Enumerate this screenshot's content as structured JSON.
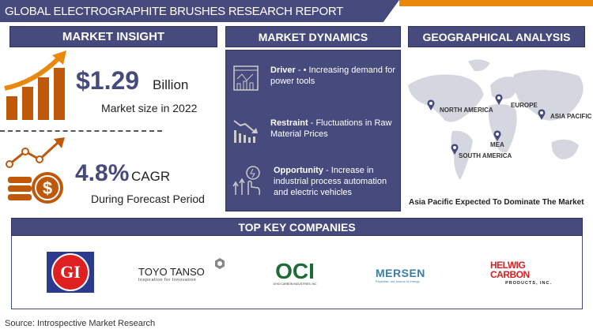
{
  "title": "GLOBAL ELECTROGRAPHITE BRUSHES RESEARCH REPORT",
  "colors": {
    "navy": "#474a7c",
    "orange": "#e8890c",
    "dark_orange": "#c0580a"
  },
  "sections": {
    "insight": "MARKET INSIGHT",
    "dynamics": "MARKET DYNAMICS",
    "geo": "GEOGRAPHICAL ANALYSIS",
    "companies": "TOP KEY COMPANIES"
  },
  "insight": {
    "market_value": "$1.29",
    "unit": "Billion",
    "market_caption": "Market size in 2022",
    "cagr_value": "4.8%",
    "cagr_label": "CAGR",
    "cagr_caption": "During Forecast Period"
  },
  "dynamics": [
    {
      "label": "Driver",
      "text": " - •  Increasing demand for power tools",
      "icon": "chart-dashboard-icon"
    },
    {
      "label": "Restraint",
      "text": " - Fluctuations in Raw Material Prices",
      "icon": "declining-bars-icon"
    },
    {
      "label": "Opportunity",
      "text": " - Increase in industrial process automation and electric vehicles",
      "icon": "growth-hand-icon"
    }
  ],
  "geo": {
    "regions": [
      "NORTH AMERICA",
      "EUROPE",
      "ASIA PACIFIC",
      "MEA",
      "SOUTH AMERICA"
    ],
    "caption": "Asia Pacific Expected To Dominate The Market"
  },
  "companies": [
    {
      "name": "GI",
      "tagline": ""
    },
    {
      "name": "TOYO TANSO",
      "tagline": "Inspiration for Innovation"
    },
    {
      "name": "OCI",
      "tagline": "OHIO CARBON INDUSTRIES, INC"
    },
    {
      "name": "MERSEN",
      "tagline": "Expertise, our source of energy"
    },
    {
      "name": "HELWIG CARBON",
      "tagline": "PRODUCTS, INC."
    }
  ],
  "source": "Source: Introspective Market Research"
}
